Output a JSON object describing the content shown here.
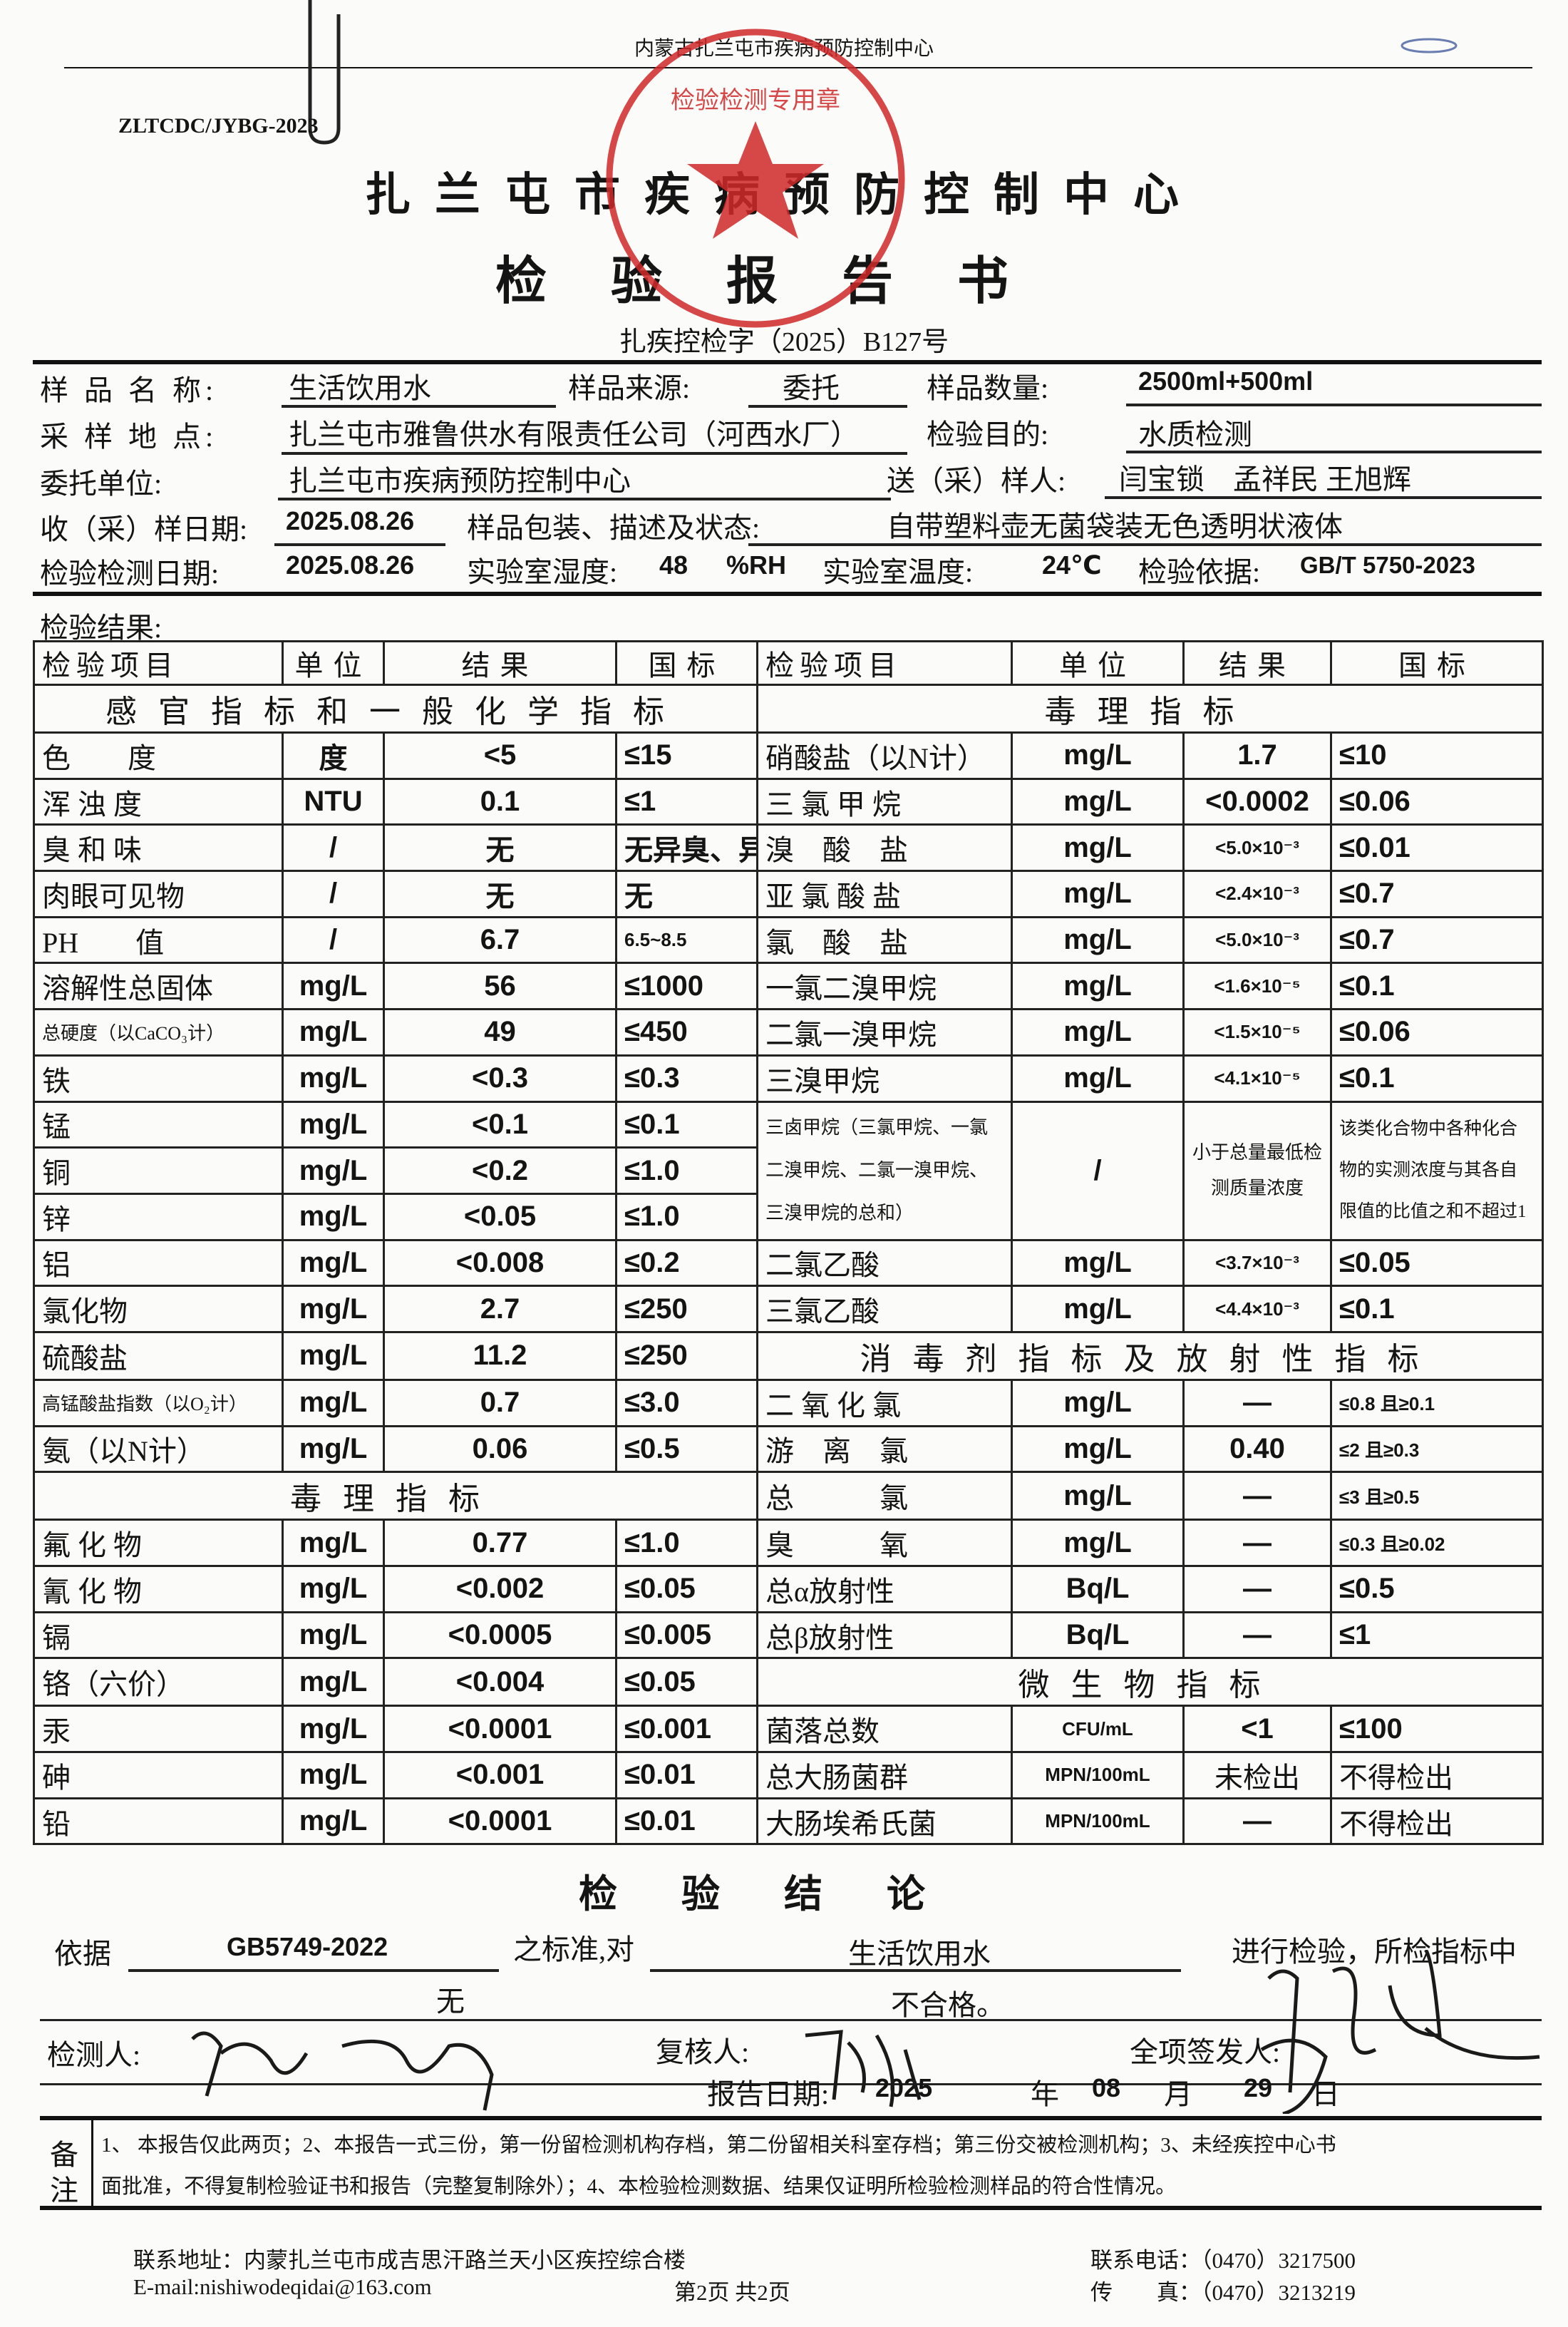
{
  "top_header": "内蒙古扎兰屯市疾病预防控制中心",
  "doc_code": "ZLTCDC/JYBG-2023",
  "org_title": "扎兰屯市疾病预防控制中心",
  "doc_title": "检验报告书",
  "report_no": "扎疾控检字（2025）B127号",
  "stamp": {
    "text": "检验检测专用章",
    "color": "#d0282a"
  },
  "info": {
    "sample_name_label": "样 品 名 称:",
    "sample_name": "生活饮用水",
    "sample_source_label": "样品来源:",
    "sample_source": "委托",
    "sample_qty_label": "样品数量:",
    "sample_qty": "2500ml+500ml",
    "site_label": "采 样 地 点:",
    "site": "扎兰屯市雅鲁供水有限责任公司（河西水厂）",
    "purpose_label": "检验目的:",
    "purpose": "水质检测",
    "client_label": "委托单位:",
    "client": "扎兰屯市疾病预防控制中心",
    "sampler_label": "送（采）样人:",
    "sampler": "闫宝锁　孟祥民 王旭辉",
    "recv_date_label": "收（采）样日期:",
    "recv_date": "2025.08.26",
    "pack_label": "样品包装、描述及状态:",
    "pack": "自带塑料壶无菌袋装无色透明状液体",
    "test_date_label": "检验检测日期:",
    "test_date": "2025.08.26",
    "humidity_label": "实验室湿度:",
    "humidity": "48",
    "humidity_unit": "%RH",
    "temp_label": "实验室温度:",
    "temp": "24℃",
    "basis_label": "检验依据:",
    "basis": "GB/T 5750-2023"
  },
  "results_label": "检验结果:",
  "table": {
    "headers": [
      "检验项目",
      "单位",
      "结果",
      "国标",
      "检验项目",
      "单位",
      "结果",
      "国标"
    ],
    "rows": [
      {
        "left_section": "感官指标和一般化学指标",
        "right_section": "毒理指标"
      },
      {
        "left": [
          "色　　度",
          "度",
          "<5",
          "≤15"
        ],
        "right": [
          "硝酸盐（以N计）",
          "mg/L",
          "1.7",
          "≤10"
        ]
      },
      {
        "left": [
          "浑 浊 度",
          "NTU",
          "0.1",
          "≤1"
        ],
        "right": [
          "三 氯 甲 烷",
          "mg/L",
          "<0.0002",
          "≤0.06"
        ]
      },
      {
        "left": [
          "臭 和 味",
          "/",
          "无",
          "无异臭、异味"
        ],
        "right": [
          "溴　酸　盐",
          "mg/L",
          "<5.0×10⁻³",
          "≤0.01"
        ]
      },
      {
        "left": [
          "肉眼可见物",
          "/",
          "无",
          "无"
        ],
        "right": [
          "亚 氯 酸 盐",
          "mg/L",
          "<2.4×10⁻³",
          "≤0.7"
        ]
      },
      {
        "left": [
          "PH　　值",
          "/",
          "6.7",
          "6.5~8.5"
        ],
        "right": [
          "氯　酸　盐",
          "mg/L",
          "<5.0×10⁻³",
          "≤0.7"
        ]
      },
      {
        "left": [
          "溶解性总固体",
          "mg/L",
          "56",
          "≤1000"
        ],
        "right": [
          "一氯二溴甲烷",
          "mg/L",
          "<1.6×10⁻⁵",
          "≤0.1"
        ]
      },
      {
        "left": [
          "总硬度（以CaCO₃计）",
          "mg/L",
          "49",
          "≤450"
        ],
        "right": [
          "二氯一溴甲烷",
          "mg/L",
          "<1.5×10⁻⁵",
          "≤0.06"
        ]
      },
      {
        "left": [
          "铁",
          "mg/L",
          "<0.3",
          "≤0.3"
        ],
        "right": [
          "三溴甲烷",
          "mg/L",
          "<4.1×10⁻⁵",
          "≤0.1"
        ]
      },
      {
        "left": [
          "锰",
          "mg/L",
          "<0.1",
          "≤0.1"
        ],
        "right_merged": [
          "三卤甲烷（三氯甲烷、一氯二溴甲烷、二氯一溴甲烷、三溴甲烷的总和）",
          "/",
          "小于总量最低检测质量浓度",
          "该类化合物中各种化合物的实测浓度与其各自限值的比值之和不超过1"
        ]
      },
      {
        "left": [
          "铜",
          "mg/L",
          "<0.2",
          "≤1.0"
        ]
      },
      {
        "left": [
          "锌",
          "mg/L",
          "<0.05",
          "≤1.0"
        ]
      },
      {
        "left": [
          "铝",
          "mg/L",
          "<0.008",
          "≤0.2"
        ],
        "right": [
          "二氯乙酸",
          "mg/L",
          "<3.7×10⁻³",
          "≤0.05"
        ]
      },
      {
        "left": [
          "氯化物",
          "mg/L",
          "2.7",
          "≤250"
        ],
        "right": [
          "三氯乙酸",
          "mg/L",
          "<4.4×10⁻³",
          "≤0.1"
        ]
      },
      {
        "left": [
          "硫酸盐",
          "mg/L",
          "11.2",
          "≤250"
        ],
        "right_section": "消毒剂指标及放射性指标"
      },
      {
        "left": [
          "高锰酸盐指数（以O₂计）",
          "mg/L",
          "0.7",
          "≤3.0"
        ],
        "right": [
          "二 氧 化 氯",
          "mg/L",
          "—",
          "≤0.8 且≥0.1"
        ]
      },
      {
        "left": [
          "氨（以N计）",
          "mg/L",
          "0.06",
          "≤0.5"
        ],
        "right": [
          "游　离　氯",
          "mg/L",
          "0.40",
          "≤2 且≥0.3"
        ]
      },
      {
        "left_section": "毒理指标",
        "right": [
          "总　　　氯",
          "mg/L",
          "—",
          "≤3 且≥0.5"
        ]
      },
      {
        "left": [
          "氟 化 物",
          "mg/L",
          "0.77",
          "≤1.0"
        ],
        "right": [
          "臭　　　氧",
          "mg/L",
          "—",
          "≤0.3 且≥0.02"
        ]
      },
      {
        "left": [
          "氰 化 物",
          "mg/L",
          "<0.002",
          "≤0.05"
        ],
        "right": [
          "总α放射性",
          "Bq/L",
          "—",
          "≤0.5"
        ]
      },
      {
        "left": [
          "镉",
          "mg/L",
          "<0.0005",
          "≤0.005"
        ],
        "right": [
          "总β放射性",
          "Bq/L",
          "—",
          "≤1"
        ]
      },
      {
        "left": [
          "铬（六价）",
          "mg/L",
          "<0.004",
          "≤0.05"
        ],
        "right_section": "微生物指标"
      },
      {
        "left": [
          "汞",
          "mg/L",
          "<0.0001",
          "≤0.001"
        ],
        "right": [
          "菌落总数",
          "CFU/mL",
          "<1",
          "≤100"
        ]
      },
      {
        "left": [
          "砷",
          "mg/L",
          "<0.001",
          "≤0.01"
        ],
        "right": [
          "总大肠菌群",
          "MPN/100mL",
          "未检出",
          "不得检出"
        ]
      },
      {
        "left": [
          "铅",
          "mg/L",
          "<0.0001",
          "≤0.01"
        ],
        "right": [
          "大肠埃希氏菌",
          "MPN/100mL",
          "—",
          "不得检出"
        ]
      }
    ]
  },
  "conclusion": {
    "title": "检验结论",
    "basis_label": "依据",
    "basis": "GB5749-2022",
    "std_label": "之标准,对",
    "object": "生活饮用水",
    "tail": "进行检验，所检指标中",
    "count": "无",
    "verdict": "不合格。",
    "tester_label": "检测人:",
    "reviewer_label": "复核人:",
    "issuer_label": "全项签发人:",
    "date_label": "报告日期:",
    "year": "2025",
    "year_unit": "年",
    "month": "08",
    "month_unit": "月",
    "day": "29",
    "day_unit": "日"
  },
  "remarks": {
    "label_1": "备",
    "label_2": "注",
    "line1": "1、 本报告仅此两页；2、本报告一式三份，第一份留检测机构存档，第二份留相关科室存档；第三份交被检测机构；3、未经疾控中心书",
    "line2": "面批准，不得复制检验证书和报告（完整复制除外）；4、本检验检测数据、结果仅证明所检验检测样品的符合性情况。"
  },
  "footer": {
    "address": "联系地址：内蒙扎兰屯市成吉思汗路兰天小区疾控综合楼",
    "email": "E-mail:nishiwodeqidai@163.com",
    "page": "第2页 共2页",
    "phone": "联系电话：（0470）3217500",
    "fax": "传　　真：（0470）3213219"
  }
}
